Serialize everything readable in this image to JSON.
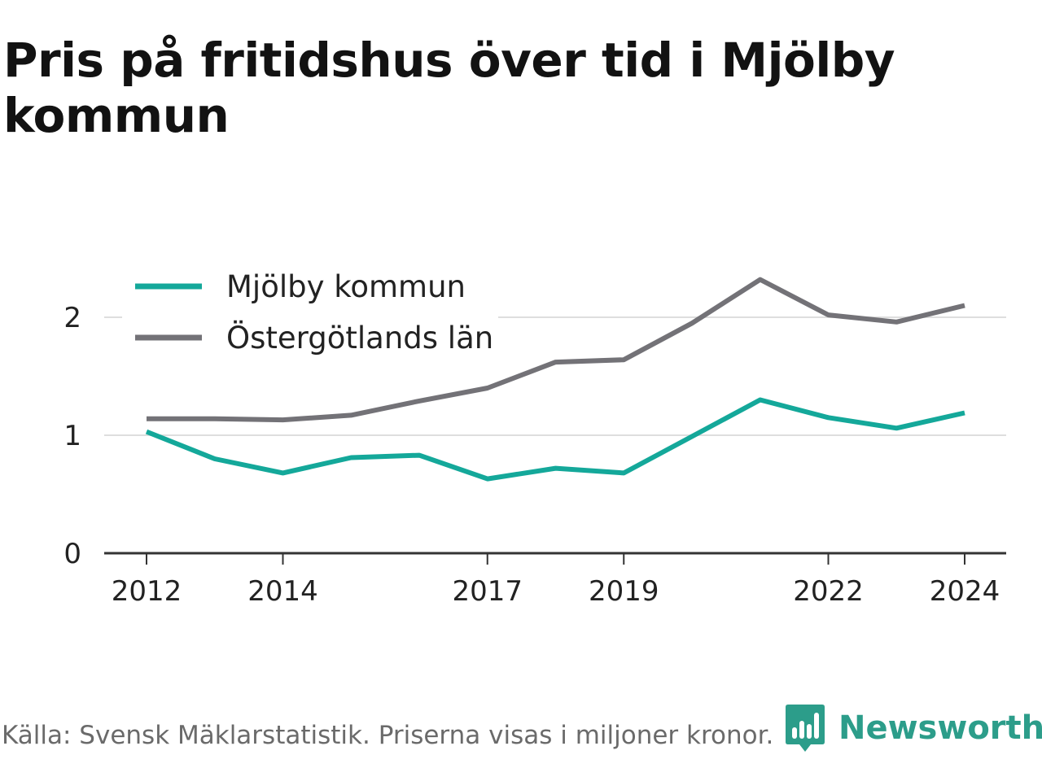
{
  "title": "Pris på fritidshus över tid i Mjölby kommun",
  "source_note": "Källa: Svensk Mäklarstatistik. Priserna visas i miljoner kronor.",
  "brand": {
    "name": "Newsworthy",
    "logo_icon": "bar-chart-speech-bubble-icon",
    "color": "#2c9d8a"
  },
  "chart_data": {
    "type": "line",
    "title": "Pris på fritidshus över tid i Mjölby kommun",
    "xlabel": "",
    "ylabel": "",
    "x": [
      2012,
      2013,
      2014,
      2015,
      2016,
      2017,
      2018,
      2019,
      2020,
      2021,
      2022,
      2023,
      2024
    ],
    "xticks": [
      2012,
      2014,
      2017,
      2019,
      2022,
      2024
    ],
    "yticks": [
      0,
      1,
      2
    ],
    "ylim": [
      0,
      2.45
    ],
    "xlim": [
      2011.7,
      2024.3
    ],
    "grid": true,
    "legend_position": "top-left",
    "series": [
      {
        "name": "Mjölby kommun",
        "color": "#14a89a",
        "values": [
          1.03,
          0.8,
          0.68,
          0.81,
          0.83,
          0.63,
          0.72,
          0.68,
          0.99,
          1.3,
          1.15,
          1.06,
          1.19
        ]
      },
      {
        "name": "Östergötlands län",
        "color": "#737277",
        "values": [
          1.14,
          1.14,
          1.13,
          1.17,
          1.29,
          1.4,
          1.62,
          1.64,
          1.95,
          2.32,
          2.02,
          1.96,
          2.1
        ]
      }
    ]
  }
}
